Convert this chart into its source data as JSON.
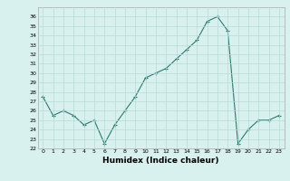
{
  "x": [
    0,
    1,
    2,
    3,
    4,
    5,
    6,
    7,
    8,
    9,
    10,
    11,
    12,
    13,
    14,
    15,
    16,
    17,
    18,
    19,
    20,
    21,
    22,
    23
  ],
  "y": [
    27.5,
    25.5,
    26.0,
    25.5,
    24.5,
    25.0,
    22.5,
    24.5,
    26.0,
    27.5,
    29.5,
    30.0,
    30.5,
    31.5,
    32.5,
    33.5,
    35.5,
    36.0,
    34.5,
    22.5,
    24.0,
    25.0,
    25.0,
    25.5
  ],
  "xlabel": "Humidex (Indice chaleur)",
  "ylim": [
    22,
    37
  ],
  "xlim": [
    -0.5,
    23.5
  ],
  "yticks": [
    22,
    23,
    24,
    25,
    26,
    27,
    28,
    29,
    30,
    31,
    32,
    33,
    34,
    35,
    36
  ],
  "xticks": [
    0,
    1,
    2,
    3,
    4,
    5,
    6,
    7,
    8,
    9,
    10,
    11,
    12,
    13,
    14,
    15,
    16,
    17,
    18,
    19,
    20,
    21,
    22,
    23
  ],
  "line_color": "#2d7a6e",
  "marker": "+",
  "bg_color": "#d8f0ee",
  "grid_color": "#b8dbd8"
}
